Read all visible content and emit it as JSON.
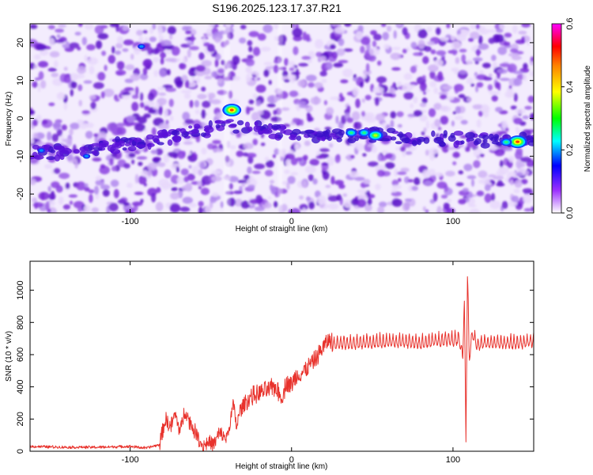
{
  "figure": {
    "title": "S196.2025.123.17.37.R21"
  },
  "chart_data": [
    {
      "type": "heatmap",
      "xlabel": "Height of straight line (km)",
      "ylabel": "Frequency (Hz)",
      "xlim": [
        -162,
        150
      ],
      "ylim": [
        -25,
        25
      ],
      "x_ticks": [
        -100,
        0,
        100
      ],
      "y_ticks": [
        -20,
        -10,
        0,
        10,
        20
      ],
      "colorbar": {
        "label": "Normalized spectral amplitude",
        "range": [
          0,
          0.6
        ],
        "ticks": [
          "0.0",
          "0.2",
          "0.4",
          "0.6"
        ],
        "colors": [
          "#ffffff",
          "#9b30ff",
          "#0000ff",
          "#00ffff",
          "#00ff00",
          "#ffff00",
          "#ff8000",
          "#ff0000",
          "#ff00ff"
        ]
      },
      "noise_color": "#8a3fe0",
      "ridge": {
        "description_points": [
          [
            -140,
            -9
          ],
          [
            -90,
            -6
          ],
          [
            -40,
            -2
          ],
          [
            0,
            -4
          ],
          [
            50,
            -4.5
          ],
          [
            100,
            -5.5
          ],
          [
            145,
            -6
          ]
        ],
        "hotspots": [
          {
            "x": -37,
            "y": 2.2,
            "amp": 0.45
          },
          {
            "x": 52,
            "y": -4.5,
            "amp": 0.32
          },
          {
            "x": 140,
            "y": -6.2,
            "amp": 0.48
          },
          {
            "x": 133,
            "y": -6.3,
            "amp": 0.25
          },
          {
            "x": -93,
            "y": 19,
            "amp": 0.18
          },
          {
            "x": -127,
            "y": -10,
            "amp": 0.2
          },
          {
            "x": -155,
            "y": -8.5,
            "amp": 0.18
          },
          {
            "x": 37,
            "y": -3.8,
            "amp": 0.22
          },
          {
            "x": 45,
            "y": -3.8,
            "amp": 0.22
          }
        ]
      }
    },
    {
      "type": "line",
      "xlabel": "Height of straight line (km)",
      "ylabel": "SNR (10 * v/v)",
      "xlim": [
        -162,
        150
      ],
      "ylim": [
        0,
        1180
      ],
      "x_ticks": [
        -100,
        0,
        100
      ],
      "y_ticks": [
        0,
        200,
        400,
        600,
        800,
        1000
      ],
      "color": "#e8322c",
      "series": [
        {
          "x": [
            -162,
            -140,
            -120,
            -100,
            -90,
            -82,
            -78,
            -75,
            -72,
            -69,
            -66,
            -63,
            -58,
            -55,
            -52,
            -48,
            -45,
            -40,
            -36,
            -34,
            -32,
            -28,
            -25,
            -20,
            -15,
            -10,
            -6,
            -3,
            0,
            3,
            6,
            10,
            14,
            18,
            22,
            26,
            30,
            40,
            50,
            60,
            70,
            80,
            90,
            100,
            104,
            106,
            107,
            108,
            109,
            110,
            112,
            115,
            120,
            130,
            140,
            150
          ],
          "y": [
            30,
            25,
            25,
            30,
            20,
            40,
            200,
            150,
            230,
            120,
            260,
            180,
            90,
            30,
            60,
            40,
            110,
            80,
            290,
            150,
            250,
            310,
            340,
            360,
            380,
            400,
            330,
            430,
            410,
            470,
            480,
            520,
            560,
            620,
            680,
            690,
            700,
            700,
            705,
            710,
            710,
            700,
            715,
            720,
            730,
            600,
            1000,
            100,
            1150,
            600,
            760,
            690,
            700,
            700,
            700,
            710
          ]
        }
      ]
    }
  ]
}
